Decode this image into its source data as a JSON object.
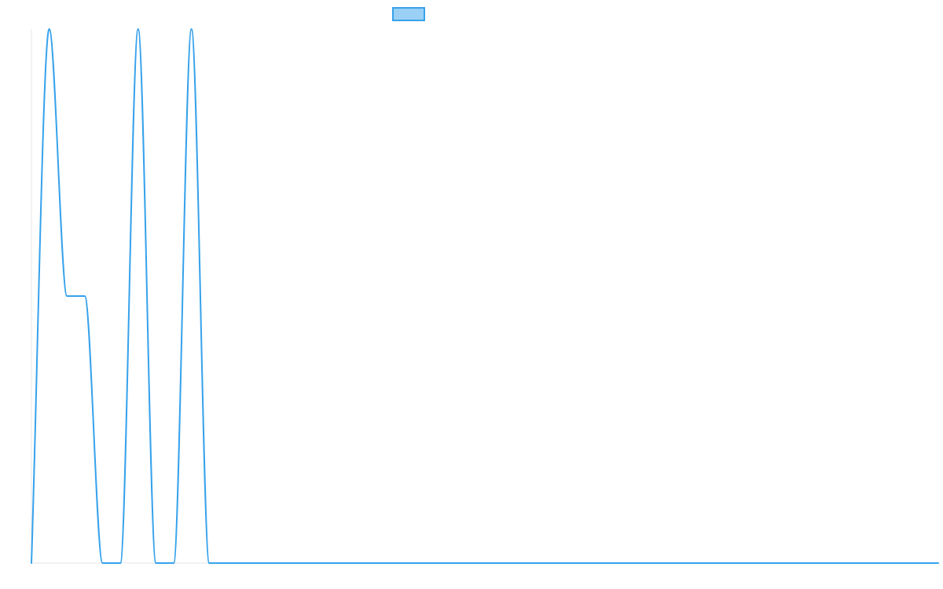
{
  "chart_data": {
    "type": "line",
    "title": "",
    "xlabel": "",
    "ylabel": "",
    "ylim": [
      0,
      1
    ],
    "grid": false,
    "legend_position": "top-center",
    "series": [
      {
        "name": "",
        "color": "#36a2eb",
        "fill_color": "#9ad0f5",
        "values": [
          0,
          1,
          0.5,
          0.5,
          0,
          0,
          1,
          0,
          0,
          1,
          0,
          0,
          0,
          0,
          0,
          0,
          0,
          0,
          0,
          0,
          0,
          0,
          0,
          0,
          0,
          0,
          0,
          0,
          0,
          0,
          0,
          0,
          0,
          0,
          0,
          0,
          0,
          0,
          0,
          0,
          0,
          0,
          0,
          0,
          0,
          0,
          0,
          0,
          0,
          0,
          0,
          0
        ]
      }
    ]
  }
}
